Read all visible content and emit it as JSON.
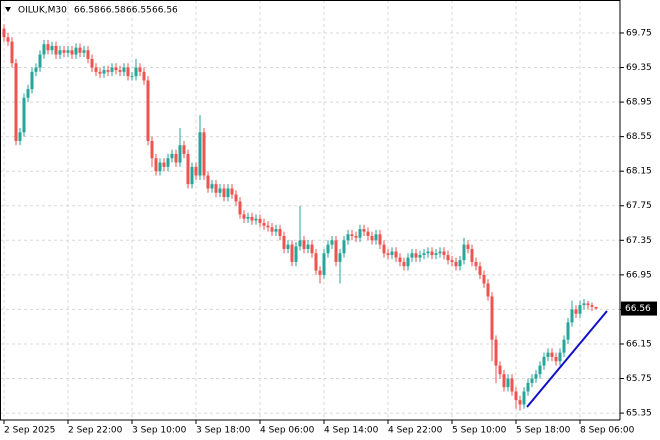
{
  "chart_data": {
    "type": "candlestick",
    "symbol": "OILUK,M30",
    "categories": [
      "2 Sep 2025",
      null,
      null,
      null,
      null,
      null,
      null,
      null,
      null,
      null,
      null,
      null,
      null,
      null,
      null,
      null,
      "2 Sep 22:00",
      null,
      null,
      null,
      null,
      null,
      null,
      null,
      null,
      null,
      null,
      null,
      null,
      null,
      null,
      null,
      "3 Sep 10:00",
      null,
      null,
      null,
      null,
      null,
      null,
      null,
      null,
      null,
      null,
      null,
      null,
      null,
      null,
      null,
      "3 Sep 18:00",
      null,
      null,
      null,
      null,
      null,
      null,
      null,
      null,
      null,
      null,
      null,
      null,
      null,
      null,
      null,
      "4 Sep 06:00",
      null,
      null,
      null,
      null,
      null,
      null,
      null,
      null,
      null,
      null,
      null,
      null,
      null,
      null,
      null,
      "4 Sep 14:00",
      null,
      null,
      null,
      null,
      null,
      null,
      null,
      null,
      null,
      null,
      null,
      null,
      null,
      null,
      null,
      "4 Sep 22:00",
      null,
      null,
      null,
      null,
      null,
      null,
      null,
      null,
      null,
      null,
      null,
      null,
      null,
      null,
      null,
      "5 Sep 10:00",
      null,
      null,
      null,
      null,
      null,
      null,
      null,
      null,
      null,
      null,
      null,
      null,
      null,
      null,
      null,
      "5 Sep 18:00",
      null,
      null,
      null,
      null,
      null,
      null,
      null,
      null,
      null,
      null,
      null,
      null,
      null,
      null,
      null,
      "8 Sep 06:00",
      null,
      null,
      null,
      null
    ],
    "open": [
      69.8,
      69.7,
      69.65,
      69.4,
      68.5,
      68.6,
      69.0,
      69.1,
      69.3,
      69.35,
      69.5,
      69.62,
      69.55,
      69.6,
      69.5,
      69.55,
      69.52,
      69.55,
      69.5,
      69.58,
      69.52,
      69.55,
      69.45,
      69.35,
      69.3,
      69.28,
      69.32,
      69.3,
      69.35,
      69.32,
      69.3,
      69.35,
      69.25,
      69.25,
      69.35,
      69.3,
      69.2,
      68.5,
      68.3,
      68.15,
      68.25,
      68.2,
      68.3,
      68.35,
      68.25,
      68.45,
      68.35,
      68.0,
      68.2,
      68.1,
      68.6,
      68.1,
      67.95,
      68.0,
      67.9,
      67.95,
      67.85,
      67.95,
      67.88,
      67.8,
      67.65,
      67.6,
      67.62,
      67.58,
      67.6,
      67.55,
      67.52,
      67.5,
      67.45,
      67.48,
      67.4,
      67.25,
      67.3,
      67.1,
      67.28,
      67.35,
      67.25,
      67.3,
      67.2,
      67.0,
      66.95,
      67.2,
      67.3,
      67.35,
      67.1,
      67.2,
      67.35,
      67.42,
      67.4,
      67.38,
      67.48,
      67.45,
      67.4,
      67.35,
      67.42,
      67.3,
      67.2,
      67.18,
      67.22,
      67.15,
      67.1,
      67.05,
      67.15,
      67.2,
      67.15,
      67.18,
      67.2,
      67.22,
      67.18,
      67.2,
      67.22,
      67.18,
      67.12,
      67.1,
      67.05,
      67.12,
      67.3,
      67.25,
      67.1,
      67.05,
      66.95,
      66.85,
      66.7,
      66.2,
      65.9,
      65.8,
      65.65,
      65.75,
      65.6,
      65.5,
      65.45,
      65.6,
      65.7,
      65.75,
      65.8,
      65.9,
      66.0,
      66.05,
      66.0,
      65.95,
      66.05,
      66.2,
      66.4,
      66.55,
      66.5,
      66.6,
      66.62,
      66.6,
      66.58
    ],
    "high": [
      69.85,
      69.75,
      69.7,
      69.45,
      68.65,
      69.05,
      69.15,
      69.35,
      69.4,
      69.55,
      69.67,
      69.67,
      69.65,
      69.65,
      69.6,
      69.6,
      69.6,
      69.6,
      69.63,
      69.63,
      69.6,
      69.6,
      69.5,
      69.4,
      69.35,
      69.37,
      69.37,
      69.4,
      69.4,
      69.37,
      69.4,
      69.4,
      69.3,
      69.45,
      69.4,
      69.35,
      69.25,
      68.55,
      68.35,
      68.3,
      68.3,
      68.35,
      68.4,
      68.4,
      68.65,
      68.5,
      68.4,
      68.25,
      68.25,
      68.8,
      68.65,
      68.15,
      68.05,
      68.05,
      68.0,
      68.0,
      68.0,
      68.0,
      67.93,
      67.85,
      67.7,
      67.67,
      67.67,
      67.65,
      67.65,
      67.6,
      67.57,
      67.55,
      67.53,
      67.53,
      67.45,
      67.35,
      67.35,
      67.33,
      67.75,
      67.4,
      67.35,
      67.35,
      67.25,
      67.05,
      67.25,
      67.35,
      67.4,
      67.4,
      67.25,
      67.4,
      67.47,
      67.47,
      67.45,
      67.53,
      67.53,
      67.5,
      67.45,
      67.47,
      67.47,
      67.35,
      67.25,
      67.27,
      67.27,
      67.2,
      67.15,
      67.2,
      67.25,
      67.25,
      67.23,
      67.25,
      67.27,
      67.27,
      67.25,
      67.27,
      67.27,
      67.23,
      67.17,
      67.15,
      67.17,
      67.38,
      67.35,
      67.3,
      67.15,
      67.1,
      67.0,
      66.9,
      66.75,
      66.25,
      65.95,
      65.85,
      65.8,
      65.8,
      65.65,
      65.55,
      65.65,
      65.75,
      65.8,
      65.85,
      65.95,
      66.05,
      66.1,
      66.1,
      66.05,
      66.1,
      66.25,
      66.45,
      66.65,
      66.6,
      66.65,
      66.67,
      66.65,
      66.63,
      66.58
    ],
    "low": [
      69.65,
      69.6,
      69.35,
      68.45,
      68.45,
      68.55,
      68.95,
      69.05,
      69.25,
      69.3,
      69.45,
      69.5,
      69.5,
      69.45,
      69.45,
      69.47,
      69.47,
      69.45,
      69.45,
      69.47,
      69.47,
      69.4,
      69.3,
      69.25,
      69.23,
      69.23,
      69.25,
      69.25,
      69.27,
      69.25,
      69.25,
      69.2,
      69.2,
      69.2,
      69.25,
      69.15,
      68.45,
      68.2,
      68.1,
      68.1,
      68.15,
      68.15,
      68.25,
      68.2,
      68.2,
      68.3,
      67.95,
      67.95,
      68.05,
      68.05,
      68.05,
      67.9,
      67.9,
      67.85,
      67.85,
      67.8,
      67.8,
      67.83,
      67.75,
      67.6,
      67.55,
      67.55,
      67.53,
      67.53,
      67.5,
      67.47,
      67.45,
      67.4,
      67.4,
      67.35,
      67.2,
      67.2,
      67.05,
      67.05,
      67.23,
      67.2,
      67.2,
      67.15,
      66.95,
      66.85,
      66.9,
      67.15,
      67.25,
      67.05,
      66.85,
      67.15,
      67.3,
      67.35,
      67.33,
      67.33,
      67.4,
      67.35,
      67.3,
      67.3,
      67.25,
      67.15,
      67.13,
      67.13,
      67.1,
      67.05,
      67.0,
      67.0,
      67.1,
      67.1,
      67.1,
      67.13,
      67.15,
      67.13,
      67.13,
      67.15,
      67.13,
      67.07,
      67.05,
      67.0,
      67.0,
      67.07,
      67.2,
      67.05,
      67.0,
      66.9,
      66.8,
      66.65,
      65.95,
      65.7,
      65.75,
      65.6,
      65.6,
      65.55,
      65.4,
      65.38,
      65.4,
      65.55,
      65.65,
      65.7,
      65.75,
      65.85,
      65.95,
      65.95,
      65.9,
      65.9,
      66.0,
      66.15,
      66.35,
      66.45,
      66.45,
      66.55,
      66.55,
      66.53,
      66.55
    ],
    "close": [
      69.7,
      69.65,
      69.4,
      68.5,
      68.6,
      69.0,
      69.1,
      69.3,
      69.35,
      69.5,
      69.62,
      69.55,
      69.6,
      69.5,
      69.55,
      69.52,
      69.55,
      69.5,
      69.58,
      69.52,
      69.55,
      69.45,
      69.35,
      69.3,
      69.28,
      69.32,
      69.3,
      69.35,
      69.32,
      69.3,
      69.35,
      69.25,
      69.25,
      69.35,
      69.3,
      69.2,
      68.5,
      68.3,
      68.15,
      68.25,
      68.2,
      68.3,
      68.35,
      68.25,
      68.45,
      68.35,
      68.0,
      68.2,
      68.1,
      68.6,
      68.1,
      67.95,
      68.0,
      67.9,
      67.95,
      67.85,
      67.95,
      67.88,
      67.8,
      67.65,
      67.6,
      67.62,
      67.58,
      67.6,
      67.55,
      67.52,
      67.5,
      67.45,
      67.48,
      67.4,
      67.25,
      67.3,
      67.1,
      67.28,
      67.35,
      67.25,
      67.3,
      67.2,
      67.0,
      66.95,
      67.2,
      67.3,
      67.35,
      67.1,
      67.2,
      67.35,
      67.42,
      67.4,
      67.38,
      67.48,
      67.45,
      67.4,
      67.35,
      67.42,
      67.3,
      67.2,
      67.18,
      67.22,
      67.15,
      67.1,
      67.05,
      67.15,
      67.2,
      67.15,
      67.18,
      67.2,
      67.22,
      67.18,
      67.2,
      67.22,
      67.18,
      67.12,
      67.1,
      67.05,
      67.12,
      67.3,
      67.25,
      67.1,
      67.05,
      66.95,
      66.85,
      66.7,
      66.2,
      65.9,
      65.8,
      65.65,
      65.75,
      65.6,
      65.5,
      65.45,
      65.6,
      65.7,
      65.75,
      65.8,
      65.9,
      66.0,
      66.05,
      66.0,
      65.95,
      66.05,
      66.2,
      66.4,
      66.55,
      66.5,
      66.6,
      66.62,
      66.6,
      66.58,
      66.56
    ],
    "up_color": "#26a69a",
    "down_color": "#ef5350",
    "ylim": [
      65.27,
      69.9
    ],
    "yticks": [
      65.35,
      65.75,
      66.15,
      66.55,
      66.95,
      67.35,
      67.75,
      68.15,
      68.55,
      68.95,
      69.35,
      69.75
    ],
    "grid": true
  }
}
